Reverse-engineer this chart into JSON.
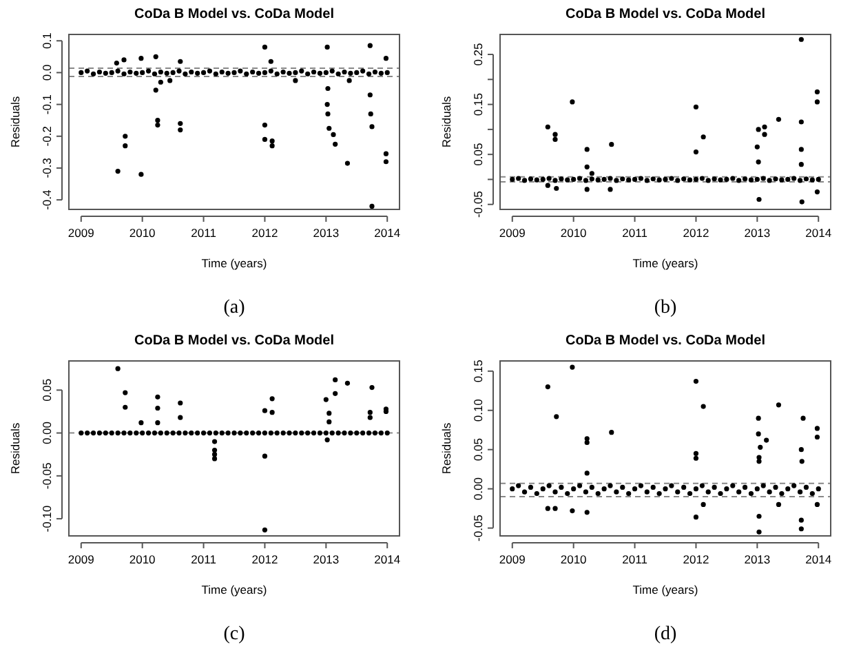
{
  "chart_data": [
    {
      "type": "scatter",
      "title": "CoDa B Model vs. CoDa Model",
      "xlabel": "Time (years)",
      "ylabel": "Residuals",
      "annotations": [
        "(a)"
      ],
      "marker": "circle",
      "grid": false,
      "xlim": [
        2008.8,
        2014.2
      ],
      "xticks": [
        2009,
        2010,
        2011,
        2012,
        2013,
        2014
      ],
      "ylim": [
        -0.43,
        0.12
      ],
      "yticks": [
        0.1,
        {
          "value": 0,
          "label": "0.0"
        },
        -0.1,
        -0.2,
        -0.3,
        -0.4
      ],
      "ref_lines": [
        {
          "axis": "y",
          "value": 0.014,
          "color": "#888888",
          "line_style": "dashed"
        },
        {
          "axis": "y",
          "value": -0.012,
          "color": "#888888",
          "line_style": "dashed"
        }
      ],
      "series": [
        {
          "color": "#000000",
          "x": [
            2009,
            2009.1,
            2009.2,
            2009.3,
            2009.4,
            2009.5,
            2009.6,
            2009.7,
            2009.8,
            2009.9,
            2010,
            2010.1,
            2010.2,
            2010.3,
            2010.4,
            2010.5,
            2010.6,
            2010.7,
            2010.8,
            2010.9,
            2011,
            2011.1,
            2011.2,
            2011.3,
            2011.4,
            2011.5,
            2011.6,
            2011.7,
            2011.8,
            2011.9,
            2012,
            2012.1,
            2012.2,
            2012.3,
            2012.4,
            2012.5,
            2012.6,
            2012.7,
            2012.8,
            2012.9,
            2013,
            2013.1,
            2013.2,
            2013.3,
            2013.4,
            2013.5,
            2013.6,
            2013.7,
            2013.8,
            2013.9,
            2014
          ],
          "values": [
            0,
            0.005,
            -0.004,
            0.002,
            -0.002,
            0,
            0.005,
            -0.004,
            0.002,
            -0.002,
            0,
            0.005,
            -0.004,
            0.002,
            -0.002,
            0,
            0.005,
            -0.004,
            0.002,
            -0.002,
            0,
            0.005,
            -0.004,
            0.002,
            -0.002,
            0,
            0.005,
            -0.004,
            0.002,
            -0.002,
            0,
            0.005,
            -0.004,
            0.002,
            -0.002,
            0,
            0.005,
            -0.004,
            0.002,
            -0.002,
            0,
            0.005,
            -0.004,
            0.002,
            -0.002,
            0,
            0.005,
            -0.004,
            0.002,
            -0.002,
            0
          ]
        },
        {
          "color": "#000000",
          "x": [
            2009.6,
            2009.58,
            2009.7,
            2009.72,
            2009.72,
            2009.98,
            2009.98,
            2010.22,
            2010.25,
            2010.25,
            2010.22,
            2010.3,
            2010.45,
            2010.62,
            2010.62,
            2010.62,
            2012,
            2012,
            2012,
            2012.12,
            2012.12,
            2012.1,
            2012.5,
            2013.02,
            2013.03,
            2013.02,
            2013.03,
            2013.05,
            2013.12,
            2013.15,
            2013.35,
            2013.38,
            2013.72,
            2013.73,
            2013.75,
            2013.75,
            2013.72,
            2013.98,
            2013.98,
            2013.98
          ],
          "values": [
            -0.31,
            0.03,
            0.04,
            -0.2,
            -0.23,
            -0.32,
            0.045,
            0.05,
            -0.15,
            -0.165,
            -0.055,
            -0.03,
            -0.025,
            -0.16,
            -0.18,
            0.035,
            0.08,
            -0.165,
            -0.21,
            -0.215,
            -0.23,
            0.035,
            -0.025,
            0.08,
            -0.13,
            -0.1,
            -0.05,
            -0.175,
            -0.195,
            -0.225,
            -0.285,
            -0.025,
            0.085,
            -0.13,
            -0.17,
            -0.42,
            -0.07,
            -0.255,
            -0.28,
            0.045
          ]
        }
      ]
    },
    {
      "type": "scatter",
      "title": "CoDa B Model vs. CoDa Model",
      "xlabel": "Time (years)",
      "ylabel": "Residuals",
      "annotations": [
        "(b)"
      ],
      "marker": "circle",
      "grid": false,
      "xlim": [
        2008.8,
        2014.2
      ],
      "xticks": [
        2009,
        2010,
        2011,
        2012,
        2013,
        2014
      ],
      "ylim": [
        -0.06,
        0.29
      ],
      "yticks": [
        -0.05,
        {
          "value": 0,
          "label": null
        },
        0.05,
        {
          "value": 0.1,
          "label": null
        },
        0.15,
        {
          "value": 0.2,
          "label": null
        },
        0.25
      ],
      "ref_lines": [
        {
          "axis": "y",
          "value": 0.005,
          "color": "#888888",
          "line_style": "dashed"
        },
        {
          "axis": "y",
          "value": -0.005,
          "color": "#888888",
          "line_style": "dashed"
        }
      ],
      "series": [
        {
          "color": "#000000",
          "x": [
            2009,
            2009.1,
            2009.2,
            2009.3,
            2009.4,
            2009.5,
            2009.6,
            2009.7,
            2009.8,
            2009.9,
            2010,
            2010.1,
            2010.2,
            2010.3,
            2010.4,
            2010.5,
            2010.6,
            2010.7,
            2010.8,
            2010.9,
            2011,
            2011.1,
            2011.2,
            2011.3,
            2011.4,
            2011.5,
            2011.6,
            2011.7,
            2011.8,
            2011.9,
            2012,
            2012.1,
            2012.2,
            2012.3,
            2012.4,
            2012.5,
            2012.6,
            2012.7,
            2012.8,
            2012.9,
            2013,
            2013.1,
            2013.2,
            2013.3,
            2013.4,
            2013.5,
            2013.6,
            2013.7,
            2013.8,
            2013.9,
            2014
          ],
          "values": [
            0,
            0.002,
            -0.002,
            0.001,
            -0.001,
            0,
            0.002,
            -0.002,
            0.001,
            -0.001,
            0,
            0.002,
            -0.002,
            0.001,
            -0.001,
            0,
            0.002,
            -0.002,
            0.001,
            -0.001,
            0,
            0.002,
            -0.002,
            0.001,
            -0.001,
            0,
            0.002,
            -0.002,
            0.001,
            -0.001,
            0,
            0.002,
            -0.002,
            0.001,
            -0.001,
            0,
            0.002,
            -0.002,
            0.001,
            -0.001,
            0,
            0.002,
            -0.002,
            0.001,
            -0.001,
            0,
            0.002,
            -0.002,
            0.001,
            -0.001,
            0
          ]
        },
        {
          "color": "#000000",
          "x": [
            2009.58,
            2009.7,
            2009.7,
            2009.98,
            2010.22,
            2010.22,
            2010.3,
            2010.62,
            2010.6,
            2012,
            2012,
            2012.12,
            2013.02,
            2013,
            2013.02,
            2013.03,
            2013.12,
            2013.12,
            2013.35,
            2013.72,
            2013.72,
            2013.72,
            2013.72,
            2013.73,
            2013.98,
            2013.98,
            2013.98,
            2009.58,
            2009.72,
            2010.22
          ],
          "values": [
            0.105,
            0.09,
            0.08,
            0.155,
            0.06,
            0.025,
            0.012,
            0.07,
            -0.02,
            0.145,
            0.055,
            0.085,
            0.1,
            0.065,
            0.035,
            -0.04,
            0.105,
            0.09,
            0.12,
            0.28,
            0.115,
            0.06,
            0.03,
            -0.045,
            0.175,
            0.155,
            -0.025,
            -0.012,
            -0.018,
            -0.02
          ]
        }
      ]
    },
    {
      "type": "scatter",
      "title": "CoDa B Model vs. CoDa Model",
      "xlabel": "Time (years)",
      "ylabel": "Residuals",
      "annotations": [
        "(c)"
      ],
      "marker": "circle",
      "grid": false,
      "xlim": [
        2008.8,
        2014.2
      ],
      "xticks": [
        2009,
        2010,
        2011,
        2012,
        2013,
        2014
      ],
      "ylim": [
        -0.12,
        0.084
      ],
      "yticks": [
        0.05,
        {
          "value": 0,
          "label": "0.00"
        },
        -0.05,
        {
          "value": -0.1,
          "label": "-0.10"
        }
      ],
      "ref_lines": [
        {
          "axis": "y",
          "value": 0,
          "color": "#888888",
          "line_style": "dashed"
        }
      ],
      "series": [
        {
          "color": "#000000",
          "x": [
            2009,
            2009.1,
            2009.2,
            2009.3,
            2009.4,
            2009.5,
            2009.6,
            2009.7,
            2009.8,
            2009.9,
            2010,
            2010.1,
            2010.2,
            2010.3,
            2010.4,
            2010.5,
            2010.6,
            2010.7,
            2010.8,
            2010.9,
            2011,
            2011.1,
            2011.2,
            2011.3,
            2011.4,
            2011.5,
            2011.6,
            2011.7,
            2011.8,
            2011.9,
            2012,
            2012.1,
            2012.2,
            2012.3,
            2012.4,
            2012.5,
            2012.6,
            2012.7,
            2012.8,
            2012.9,
            2013,
            2013.1,
            2013.2,
            2013.3,
            2013.4,
            2013.5,
            2013.6,
            2013.7,
            2013.8,
            2013.9,
            2014
          ],
          "values": [
            0,
            0,
            0,
            0,
            0,
            0,
            0,
            0,
            0,
            0,
            0,
            0,
            0,
            0,
            0,
            0,
            0,
            0,
            0,
            0,
            0,
            0,
            0,
            0,
            0,
            0,
            0,
            0,
            0,
            0,
            0,
            0,
            0,
            0,
            0,
            0,
            0,
            0,
            0,
            0,
            0,
            0,
            0,
            0,
            0,
            0,
            0,
            0,
            0,
            0,
            0
          ]
        },
        {
          "color": "#000000",
          "x": [
            2009.6,
            2009.72,
            2009.72,
            2009.98,
            2010.25,
            2010.25,
            2010.25,
            2010.62,
            2010.62,
            2011.18,
            2011.18,
            2011.18,
            2011.18,
            2012,
            2012,
            2012,
            2012.12,
            2012.12,
            2013,
            2013.05,
            2013.05,
            2013.15,
            2013.15,
            2013.35,
            2013.72,
            2013.72,
            2013.75,
            2013.98,
            2013.98,
            2013.02
          ],
          "values": [
            0.075,
            0.047,
            0.03,
            0.012,
            0.042,
            0.029,
            0.012,
            0.035,
            0.018,
            -0.01,
            -0.02,
            -0.025,
            -0.03,
            0.026,
            -0.027,
            -0.113,
            0.04,
            0.024,
            0.039,
            0.023,
            0.013,
            0.062,
            0.046,
            0.058,
            0.024,
            0.018,
            0.053,
            0.028,
            0.025,
            -0.008
          ]
        }
      ]
    },
    {
      "type": "scatter",
      "title": "CoDa B Model vs. CoDa Model",
      "xlabel": "Time (years)",
      "ylabel": "Residuals",
      "annotations": [
        "(d)"
      ],
      "marker": "circle",
      "grid": false,
      "xlim": [
        2008.8,
        2014.2
      ],
      "xticks": [
        2009,
        2010,
        2011,
        2012,
        2013,
        2014
      ],
      "ylim": [
        -0.06,
        0.163
      ],
      "yticks": [
        0.15,
        {
          "value": 0.1,
          "label": "0.10"
        },
        0.05,
        {
          "value": 0,
          "label": "0.00"
        },
        -0.05
      ],
      "ref_lines": [
        {
          "axis": "y",
          "value": 0.007,
          "color": "#888888",
          "line_style": "dashed"
        },
        {
          "axis": "y",
          "value": -0.01,
          "color": "#888888",
          "line_style": "dashed"
        }
      ],
      "series": [
        {
          "color": "#000000",
          "x": [
            2009,
            2009.1,
            2009.2,
            2009.3,
            2009.4,
            2009.5,
            2009.6,
            2009.7,
            2009.8,
            2009.9,
            2010,
            2010.1,
            2010.2,
            2010.3,
            2010.4,
            2010.5,
            2010.6,
            2010.7,
            2010.8,
            2010.9,
            2011,
            2011.1,
            2011.2,
            2011.3,
            2011.4,
            2011.5,
            2011.6,
            2011.7,
            2011.8,
            2011.9,
            2012,
            2012.1,
            2012.2,
            2012.3,
            2012.4,
            2012.5,
            2012.6,
            2012.7,
            2012.8,
            2012.9,
            2013,
            2013.1,
            2013.2,
            2013.3,
            2013.4,
            2013.5,
            2013.6,
            2013.7,
            2013.8,
            2013.9,
            2014
          ],
          "values": [
            0,
            0.004,
            -0.004,
            0.002,
            -0.006,
            0,
            0.004,
            -0.004,
            0.002,
            -0.006,
            0,
            0.004,
            -0.004,
            0.002,
            -0.006,
            0,
            0.004,
            -0.004,
            0.002,
            -0.006,
            0,
            0.004,
            -0.004,
            0.002,
            -0.006,
            0,
            0.004,
            -0.004,
            0.002,
            -0.006,
            0,
            0.004,
            -0.004,
            0.002,
            -0.006,
            0,
            0.004,
            -0.004,
            0.002,
            -0.006,
            0,
            0.004,
            -0.004,
            0.002,
            -0.006,
            0,
            0.004,
            -0.004,
            0.002,
            -0.006,
            0
          ]
        },
        {
          "color": "#000000",
          "x": [
            2009.58,
            2009.72,
            2009.98,
            2010.22,
            2010.22,
            2010.22,
            2010.62,
            2012,
            2012,
            2012,
            2012,
            2012.12,
            2012.12,
            2013.02,
            2013.02,
            2013.03,
            2013.03,
            2013.05,
            2013.03,
            2013.03,
            2013.15,
            2013.35,
            2013.35,
            2013.72,
            2013.73,
            2013.72,
            2013.72,
            2013.75,
            2013.98,
            2013.98,
            2013.98,
            2009.58,
            2009.7,
            2009.98,
            2010.22
          ],
          "values": [
            0.13,
            0.092,
            0.155,
            0.064,
            0.059,
            0.02,
            0.072,
            0.137,
            0.045,
            0.039,
            -0.036,
            0.105,
            -0.02,
            0.09,
            0.07,
            0.04,
            0.035,
            0.053,
            -0.035,
            -0.055,
            0.062,
            0.107,
            -0.02,
            0.05,
            0.035,
            -0.04,
            -0.051,
            0.09,
            0.077,
            0.066,
            -0.02,
            -0.025,
            -0.025,
            -0.028,
            -0.03
          ]
        }
      ]
    }
  ]
}
